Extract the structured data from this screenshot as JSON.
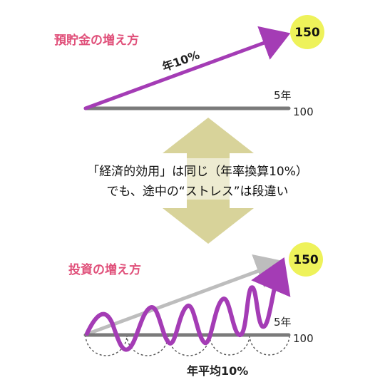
{
  "savings": {
    "title": "預貯金の増え方",
    "rate_label": "年10%",
    "end_value": "150",
    "start_value": "100",
    "duration": "5年"
  },
  "message": {
    "line1": "「経済的効用」は同じ（年率換算10%）",
    "line2": "でも、途中の“ストレス”は段違い"
  },
  "investment": {
    "title": "投資の増え方",
    "rate_label": "年平均10%",
    "end_value": "150",
    "start_value": "100",
    "duration": "5年"
  },
  "colors": {
    "title_pink": "#e0507a",
    "purple": "#a43cb5",
    "gray_line": "#7a7a7a",
    "light_gray": "#bdbdbd",
    "yellow_circle": "#eef25a",
    "arrow_olive": "#d8d39a"
  }
}
